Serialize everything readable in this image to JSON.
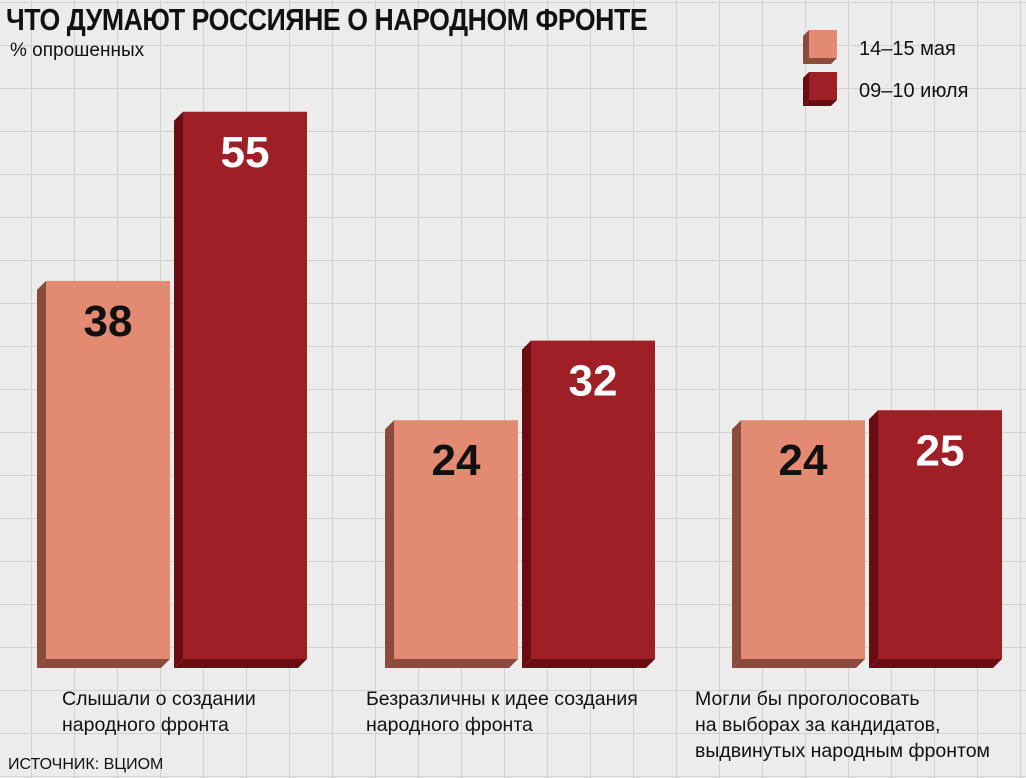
{
  "title": "ЧТО ДУМАЮТ РОССИЯНЕ О НАРОДНОМ ФРОНТЕ",
  "subtitle": "% опрошенных",
  "source": "ИСТОЧНИК: ВЦИОМ",
  "colors": {
    "series1_face": "#e28a72",
    "series1_side": "#8a4a3c",
    "series2_face": "#9f1f27",
    "series2_side": "#6a0d13"
  },
  "legend": [
    {
      "label": "14–15 мая"
    },
    {
      "label": "09–10 июля"
    }
  ],
  "chart_data": {
    "type": "bar",
    "title": "ЧТО ДУМАЮТ РОССИЯНЕ О НАРОДНОМ ФРОНТЕ",
    "ylabel": "% опрошенных",
    "categories": [
      "Слышали о создании\nнародного фронта",
      "Безразличны к идее создания\nнародного фронта",
      "Могли бы проголосовать\nна выборах за кандидатов,\nвыдвинутых народным фронтом"
    ],
    "series": [
      {
        "name": "14–15 мая",
        "values": [
          38,
          24,
          24
        ]
      },
      {
        "name": "09–10 июля",
        "values": [
          55,
          32,
          25
        ]
      }
    ],
    "ylim": [
      0,
      60
    ],
    "grid": true,
    "legend_position": "top-right"
  }
}
